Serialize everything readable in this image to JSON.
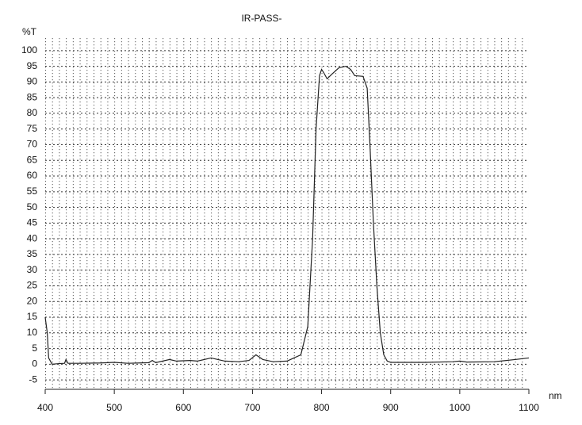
{
  "chart_data": {
    "type": "line",
    "title": "IR-PASS-",
    "y_label": "%T",
    "x_label": "nm",
    "x": [
      400,
      403,
      405,
      410,
      420,
      428,
      430,
      433,
      450,
      480,
      500,
      520,
      550,
      555,
      560,
      580,
      590,
      610,
      620,
      640,
      660,
      680,
      695,
      705,
      715,
      730,
      750,
      760,
      770,
      780,
      787,
      792,
      797,
      800,
      803,
      808,
      815,
      825,
      835,
      842,
      848,
      860,
      866,
      870,
      875,
      880,
      885,
      890,
      895,
      900,
      950,
      990,
      1000,
      1010,
      1050,
      1080,
      1100
    ],
    "series": [
      {
        "name": "%T",
        "color": "#222222",
        "values": [
          15,
          10,
          2,
          0,
          0.2,
          0.3,
          1.5,
          0.3,
          0.3,
          0.4,
          0.6,
          0.3,
          0.5,
          1.2,
          0.5,
          1.5,
          1.0,
          1.2,
          1.0,
          2.0,
          1.0,
          0.8,
          1.2,
          3,
          1.5,
          0.8,
          1,
          2,
          3,
          12,
          40,
          75,
          92,
          94,
          93,
          91,
          92.5,
          94.5,
          95,
          94,
          92,
          91.8,
          88,
          70,
          45,
          25,
          10,
          3,
          1,
          0.6,
          0.6,
          0.8,
          1,
          0.7,
          0.8,
          1.5,
          2
        ]
      }
    ],
    "xlim": [
      400,
      1100
    ],
    "xticks": [
      400,
      500,
      600,
      700,
      800,
      900,
      1000,
      1100
    ],
    "ylim": [
      -8,
      104
    ],
    "yticks": [
      -5,
      0,
      5,
      10,
      15,
      20,
      25,
      30,
      35,
      40,
      45,
      50,
      55,
      60,
      65,
      70,
      75,
      80,
      85,
      90,
      95,
      100
    ],
    "grid": true
  }
}
